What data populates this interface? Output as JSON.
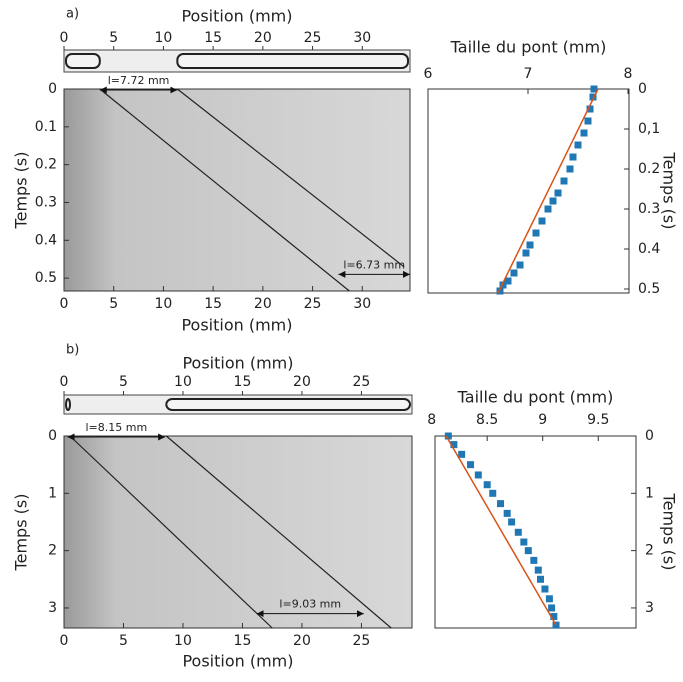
{
  "chart_data": [
    {
      "type": "kymograph",
      "panel_label": "a)",
      "x_label": "Position (mm)",
      "y_label": "Temps (s)",
      "xlim": [
        0,
        34.8
      ],
      "xticks": [
        0,
        5,
        10,
        15,
        20,
        25,
        30
      ],
      "ylim": [
        0,
        0.534
      ],
      "yticks": [
        0,
        {
          "value": 0.1,
          "label": "0.1"
        },
        0.2,
        0.3,
        0.4,
        0.5
      ],
      "series": [
        {
          "color": "#222222",
          "x": [
            3.6,
            28.7
          ],
          "y": [
            0,
            0.534
          ]
        },
        {
          "color": "#222222",
          "x": [
            11.4,
            34.2
          ],
          "y": [
            0,
            0.47
          ]
        }
      ],
      "annotations": [
        {
          "text": "l=7.72 mm",
          "x": [
            3.6,
            11.4
          ],
          "y": 0
        },
        {
          "text": "l=6.73 mm",
          "x": [
            27.6,
            34.8
          ],
          "y": 0.49
        }
      ]
    },
    {
      "type": "scatter",
      "x_label": "Taille du pont (mm)",
      "y_label": "Temps (s)",
      "xlim": [
        6,
        8.01
      ],
      "xticks": [
        6,
        7,
        8
      ],
      "ylim": [
        0,
        0.51
      ],
      "yticks": [
        0,
        {
          "value": 0.1,
          "label": "0,1"
        },
        0.2,
        0.3,
        0.4,
        0.5
      ],
      "series": [
        {
          "style": "markers",
          "color": "#1f77b4",
          "x": [
            7.66,
            7.65,
            7.62,
            7.6,
            7.56,
            7.5,
            7.45,
            7.42,
            7.36,
            7.3,
            7.25,
            7.2,
            7.14,
            7.08,
            7.02,
            6.98,
            6.92,
            6.86,
            6.8,
            6.75,
            6.72
          ],
          "y": [
            0,
            0.02,
            0.05,
            0.08,
            0.11,
            0.14,
            0.17,
            0.2,
            0.23,
            0.26,
            0.28,
            0.3,
            0.33,
            0.36,
            0.39,
            0.41,
            0.44,
            0.46,
            0.48,
            0.49,
            0.505
          ]
        },
        {
          "style": "line",
          "color": "#d95319",
          "x": [
            6.7,
            7.7
          ],
          "y": [
            0.51,
            0
          ]
        }
      ]
    },
    {
      "type": "kymograph",
      "panel_label": "b)",
      "x_label": "Position (mm)",
      "y_label": "Temps (s)",
      "xlim": [
        0,
        29.25
      ],
      "xticks": [
        0,
        5,
        10,
        15,
        20,
        25
      ],
      "ylim": [
        0,
        3.35
      ],
      "yticks": [
        0,
        1,
        2,
        3
      ],
      "series": [
        {
          "color": "#222222",
          "x": [
            0.5,
            17.5
          ],
          "y": [
            0,
            3.35
          ]
        },
        {
          "color": "#222222",
          "x": [
            8.6,
            27.5
          ],
          "y": [
            0,
            3.35
          ]
        }
      ],
      "annotations": [
        {
          "text": "l=8.15 mm",
          "x": [
            0.3,
            8.5
          ],
          "y": 0
        },
        {
          "text": "l=9.03 mm",
          "x": [
            16.2,
            25.2
          ],
          "y": 3.1
        }
      ]
    },
    {
      "type": "scatter",
      "x_label": "Taille du pont (mm)",
      "y_label": "Temps (s)",
      "xlim": [
        8.03,
        9.84
      ],
      "xticks": [
        8,
        8.5,
        9,
        9.5
      ],
      "ylim": [
        0,
        3.35
      ],
      "yticks": [
        0,
        1,
        2,
        3
      ],
      "series": [
        {
          "style": "markers",
          "color": "#1f77b4",
          "x": [
            8.15,
            8.2,
            8.27,
            8.35,
            8.42,
            8.5,
            8.55,
            8.62,
            8.68,
            8.72,
            8.78,
            8.83,
            8.87,
            8.92,
            8.96,
            8.98,
            9.02,
            9.06,
            9.08,
            9.1,
            9.12
          ],
          "y": [
            0,
            0.15,
            0.32,
            0.5,
            0.68,
            0.85,
            1.0,
            1.18,
            1.35,
            1.5,
            1.68,
            1.85,
            2.0,
            2.17,
            2.34,
            2.5,
            2.67,
            2.84,
            3.0,
            3.15,
            3.3
          ]
        },
        {
          "style": "line",
          "color": "#d95319",
          "x": [
            8.13,
            9.12
          ],
          "y": [
            0,
            3.3
          ]
        }
      ]
    }
  ]
}
